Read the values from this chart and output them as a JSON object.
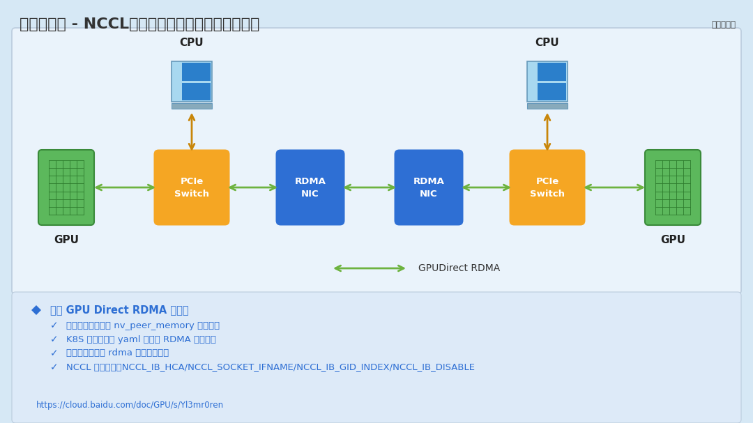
{
  "title": "通信库优化 - NCCL，充分使能通信库层面优化能力",
  "bg_color": "#d6e8f5",
  "diagram_bg": "#eaf3fb",
  "info_bg": "#ddeaf8",
  "orange_color": "#F5A623",
  "blue_color": "#2E6FD4",
  "green_color": "#5CB85C",
  "arrow_color": "#6DB33F",
  "orange_arrow_color": "#C8860A",
  "title_color": "#333333",
  "bullet_color": "#2E6FD4",
  "text_color": "#2E6FD4",
  "bullet_header": "使能 GPU Direct RDMA 技术：",
  "bullet_items": [
    "宿主机，需要加载 nv_peer_memory 内核模块",
    "K8S 调度，作业 yaml 中声明 RDMA 资源信息",
    "容器镜像，安装 rdma 用户态驱动库",
    "NCCL 环境变量，NCCL_IB_HCA/NCCL_SOCKET_IFNAME/NCCL_IB_GID_INDEX/NCCL_IB_DISABLE"
  ],
  "url": "https://cloud.baidu.com/doc/GPU/s/Yl3mr0ren",
  "gpudirect_label": "GPUDirect RDMA",
  "cpu_label": "CPU",
  "gpu_label": "GPU",
  "pcie_label": "PCIe\nSwitch",
  "rdma_label": "RDMA\nNIC",
  "baidu_label": "百度智能云"
}
